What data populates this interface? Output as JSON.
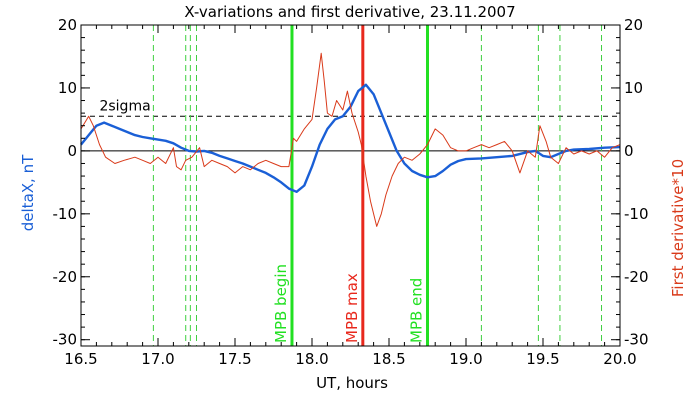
{
  "chart_data": {
    "type": "line",
    "title": "X-variations and first derivative, 23.11.2007",
    "xlabel": "UT, hours",
    "ylabel": "deltaX, nT",
    "ylabel_right": "First derivative*10",
    "xlim": [
      16.5,
      20.0
    ],
    "ylim": [
      -31,
      20
    ],
    "ylim_right": [
      -31,
      20
    ],
    "x_ticks": [
      16.5,
      17.0,
      17.5,
      18.0,
      18.5,
      19.0,
      19.5,
      20.0
    ],
    "x_tick_labels": [
      "16.5",
      "17.0",
      "17.5",
      "18.0",
      "18.5",
      "19.0",
      "19.5",
      "20.0"
    ],
    "y_ticks": [
      -30,
      -20,
      -10,
      0,
      10,
      20
    ],
    "y_tick_labels": [
      "-30",
      "-20",
      "-10",
      "0",
      "10",
      "20"
    ],
    "y_tick_labels_right": [
      "-30",
      "-20",
      "-10",
      "0",
      "10",
      "20"
    ],
    "colors": {
      "deltaX": "#1a5fd6",
      "derivative": "#d93a1a",
      "mpb": "#22e022",
      "mpb_max": "#e8281c",
      "dashed_green": "#3fd03f",
      "axis": "#000000"
    },
    "reference_lines": [
      {
        "y": 0,
        "style": "solid"
      },
      {
        "y": 5.5,
        "style": "dashed",
        "label": "2sigma"
      }
    ],
    "dashed_verticals": [
      16.97,
      17.18,
      17.21,
      17.25,
      19.1,
      19.47,
      19.61,
      19.88
    ],
    "markers": [
      {
        "x": 17.87,
        "label": "MPB begin",
        "color": "#22e022"
      },
      {
        "x": 18.33,
        "label": "MPB max",
        "color": "#e8281c"
      },
      {
        "x": 18.75,
        "label": "MPB end",
        "color": "#22e022"
      }
    ],
    "series": [
      {
        "key": "deltaX",
        "x": [
          16.5,
          16.55,
          16.6,
          16.65,
          16.7,
          16.75,
          16.8,
          16.85,
          16.9,
          16.95,
          17.0,
          17.05,
          17.1,
          17.15,
          17.2,
          17.25,
          17.3,
          17.35,
          17.4,
          17.45,
          17.5,
          17.55,
          17.6,
          17.65,
          17.7,
          17.75,
          17.8,
          17.85,
          17.9,
          17.95,
          18.0,
          18.05,
          18.1,
          18.15,
          18.2,
          18.25,
          18.3,
          18.35,
          18.4,
          18.45,
          18.5,
          18.55,
          18.6,
          18.65,
          18.7,
          18.75,
          18.8,
          18.85,
          18.9,
          18.95,
          19.0,
          19.1,
          19.2,
          19.3,
          19.4,
          19.45,
          19.5,
          19.55,
          19.6,
          19.65,
          19.7,
          19.8,
          19.9,
          20.0
        ],
        "y": [
          1.0,
          2.5,
          4.0,
          4.5,
          4.0,
          3.5,
          3.0,
          2.5,
          2.2,
          2.0,
          1.8,
          1.6,
          1.2,
          0.5,
          0.0,
          -0.1,
          0.0,
          -0.3,
          -0.8,
          -1.2,
          -1.6,
          -2.0,
          -2.5,
          -3.0,
          -3.5,
          -4.2,
          -5.0,
          -6.0,
          -6.5,
          -5.5,
          -2.5,
          1.0,
          3.5,
          5.0,
          5.5,
          7.0,
          9.5,
          10.5,
          9.0,
          6.0,
          3.0,
          0.0,
          -2.0,
          -3.2,
          -3.8,
          -4.2,
          -4.0,
          -3.2,
          -2.2,
          -1.6,
          -1.3,
          -1.2,
          -1.0,
          -0.8,
          -0.2,
          0.0,
          -0.8,
          -1.0,
          -0.5,
          0.0,
          0.2,
          0.3,
          0.5,
          0.6
        ]
      },
      {
        "key": "derivative",
        "x": [
          16.5,
          16.55,
          16.58,
          16.62,
          16.66,
          16.72,
          16.78,
          16.85,
          16.9,
          16.95,
          17.0,
          17.05,
          17.1,
          17.12,
          17.15,
          17.18,
          17.22,
          17.27,
          17.3,
          17.35,
          17.4,
          17.45,
          17.5,
          17.55,
          17.6,
          17.65,
          17.7,
          17.75,
          17.8,
          17.85,
          17.88,
          17.9,
          17.95,
          18.0,
          18.03,
          18.06,
          18.08,
          18.1,
          18.13,
          18.16,
          18.2,
          18.23,
          18.26,
          18.3,
          18.32,
          18.35,
          18.38,
          18.42,
          18.45,
          18.48,
          18.52,
          18.56,
          18.6,
          18.65,
          18.7,
          18.75,
          18.8,
          18.85,
          18.9,
          18.95,
          19.0,
          19.05,
          19.1,
          19.15,
          19.2,
          19.25,
          19.3,
          19.35,
          19.4,
          19.45,
          19.48,
          19.52,
          19.55,
          19.6,
          19.65,
          19.7,
          19.75,
          19.8,
          19.85,
          19.9,
          19.95,
          20.0
        ],
        "y": [
          3.5,
          5.5,
          4.0,
          1.0,
          -1.0,
          -2.0,
          -1.5,
          -1.0,
          -1.5,
          -2.0,
          -1.0,
          -2.0,
          0.5,
          -2.5,
          -3.0,
          -1.5,
          -1.0,
          0.5,
          -2.5,
          -1.5,
          -2.0,
          -2.5,
          -3.5,
          -2.5,
          -3.0,
          -2.0,
          -1.5,
          -2.0,
          -2.5,
          -2.5,
          2.0,
          1.5,
          3.5,
          5.0,
          10.0,
          15.5,
          11.0,
          6.0,
          5.5,
          8.0,
          6.5,
          9.5,
          6.0,
          3.0,
          1.0,
          -4.0,
          -8.0,
          -12.0,
          -10.0,
          -7.0,
          -4.0,
          -2.0,
          -1.0,
          -1.5,
          -0.5,
          1.0,
          3.5,
          2.5,
          0.5,
          0.0,
          0.0,
          0.5,
          1.0,
          0.5,
          1.0,
          1.5,
          0.0,
          -3.5,
          0.0,
          -1.0,
          4.0,
          1.5,
          -1.0,
          -2.0,
          0.5,
          -0.5,
          0.0,
          -0.5,
          0.0,
          -1.0,
          0.5,
          1.0
        ]
      }
    ]
  }
}
